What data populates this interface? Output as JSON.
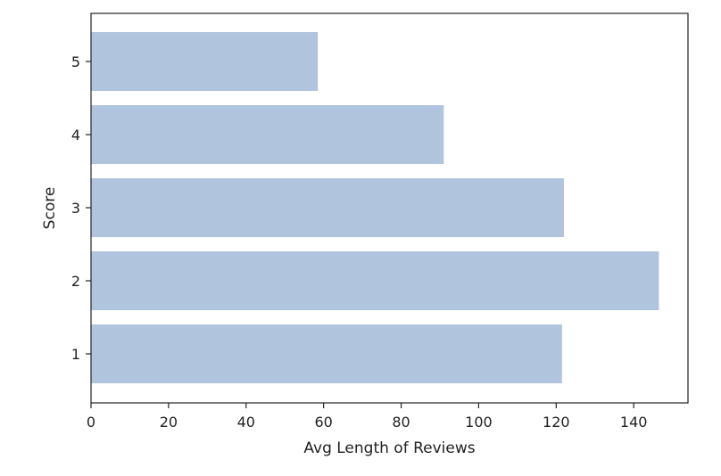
{
  "chart_data": {
    "type": "bar",
    "orientation": "horizontal",
    "categories": [
      "1",
      "2",
      "3",
      "4",
      "5"
    ],
    "values": [
      121.5,
      146.5,
      122,
      91,
      58.5
    ],
    "xlabel": "Avg Length of Reviews",
    "ylabel": "Score",
    "xlim": [
      0,
      154
    ],
    "xticks": [
      0,
      20,
      40,
      60,
      80,
      100,
      120,
      140
    ],
    "bar_color": "#b0c4de",
    "grid": false,
    "legend": "none"
  }
}
